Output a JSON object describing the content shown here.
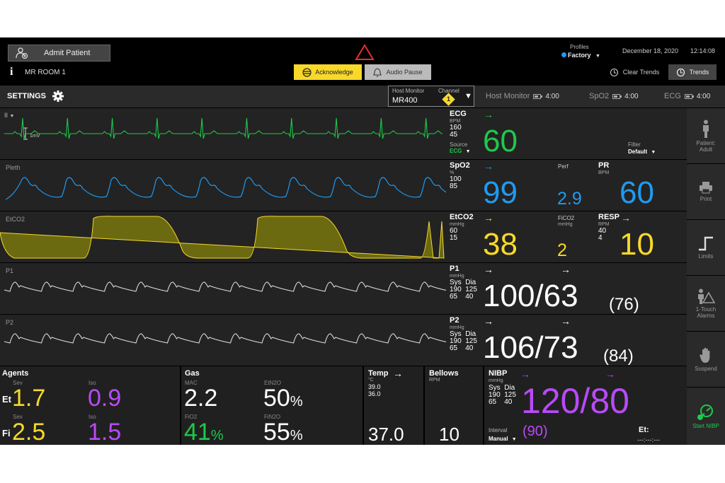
{
  "header": {
    "admit_label": "Admit Patient",
    "info_glyph": "i",
    "room": "MR ROOM 1",
    "acknowledge_label": "Acknowledge",
    "audio_pause_label": "Audio Pause",
    "profiles_label": "Profiles",
    "profile_value": "Factory",
    "date": "December 18, 2020",
    "time": "12:14:08",
    "clear_trends_label": "Clear Trends",
    "trends_label": "Trends"
  },
  "toolbar": {
    "settings_label": "SETTINGS",
    "host_monitor_label": "Host Monitor",
    "host_monitor_value": "MR400",
    "channel_label": "Channel",
    "channel_value": "1",
    "batteries": [
      {
        "name": "Host Monitor",
        "time": "4:00"
      },
      {
        "name": "SpO2",
        "time": "4:00"
      },
      {
        "name": "ECG",
        "time": "4:00"
      }
    ]
  },
  "ecg": {
    "lead": "II",
    "scale": "1mV",
    "name": "ECG",
    "unit": "BPM",
    "limits": "160\n45",
    "source_label": "Source",
    "source_value": "ECG",
    "value": "60",
    "filter_label": "Filter",
    "filter_value": "Default"
  },
  "spo2": {
    "wave_label": "Pleth",
    "name": "SpO2",
    "unit": "%",
    "limits": "100\n85",
    "value": "99",
    "perf_label": "Perf",
    "perf_value": "2.9",
    "pr_label": "PR",
    "pr_unit": "BPM",
    "pr_value": "60"
  },
  "etco2": {
    "wave_label": "EtCO2",
    "name": "EtCO2",
    "unit": "mmHg",
    "limits": "60\n15",
    "value": "38",
    "fico2_label": "FiCO2",
    "fico2_unit": "mmHg",
    "fico2_value": "2",
    "resp_label": "RESP",
    "resp_unit": "RPM",
    "resp_limits": "40\n4",
    "resp_value": "10"
  },
  "p1": {
    "wave_label": "P1",
    "name": "P1",
    "unit": "mmHg",
    "limits": "Sys  Dia\n190  125\n65    40",
    "value": "100/63",
    "mean": "(76)"
  },
  "p2": {
    "wave_label": "P2",
    "name": "P2",
    "unit": "mmHg",
    "limits": "Sys  Dia\n190  125\n65    40",
    "value": "106/73",
    "mean": "(84)"
  },
  "agents": {
    "title": "Agents",
    "et_label": "Et",
    "fi_label": "Fi",
    "sev_label": "Sev",
    "iso_label": "Iso",
    "et_sev": "1.7",
    "et_iso": "0.9",
    "fi_sev": "2.5",
    "fi_iso": "1.5"
  },
  "gas": {
    "title": "Gas",
    "mac_label": "MAC",
    "mac_value": "2.2",
    "etn2o_label": "EtN2O",
    "etn2o_value": "50",
    "fio2_label": "FiO2",
    "fio2_value": "41",
    "fin2o_label": "FiN2O",
    "fin2o_value": "55",
    "pct": "%"
  },
  "temp": {
    "title": "Temp",
    "unit": "°C",
    "limits": "39.0\n36.0",
    "value": "37.0"
  },
  "bellows": {
    "title": "Bellows",
    "unit": "RPM",
    "value": "10"
  },
  "nibp": {
    "title": "NIBP",
    "unit": "mmHg",
    "limits": "Sys  Dia\n190  125\n65    40",
    "value": "120/80",
    "mean": "(90)",
    "interval_label": "Interval",
    "interval_value": "Manual",
    "et_label": "Et:",
    "et_value": "---:---:---"
  },
  "sidebar": {
    "patient": "Patient:\nAdult",
    "print": "Print",
    "limits": "Limits",
    "one_touch": "1-Touch\nAlarms",
    "suspend": "Suspend",
    "start_nibp": "Start NIBP"
  },
  "icons": {
    "admit": "admit-patient-icon",
    "alarm": "alarm-triangle-icon",
    "gear": "gear-icon",
    "trends": "trends-icon"
  },
  "colors": {
    "ecg": "#1ec94b",
    "spo2": "#1f9bf0",
    "co2": "#f8d92a",
    "nibp": "#b94af8",
    "alarm": "#e03030",
    "acknowledge": "#f8d92a"
  }
}
